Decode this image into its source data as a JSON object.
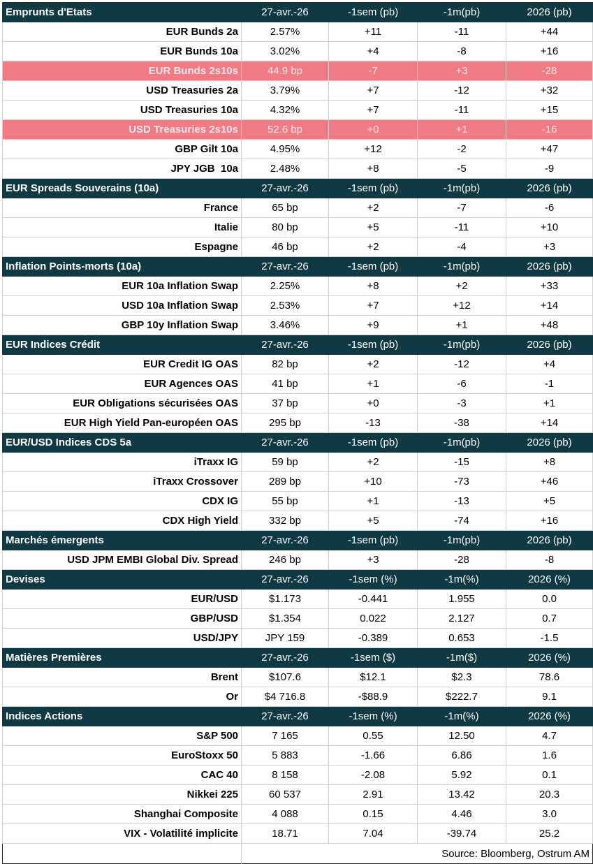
{
  "sections": [
    {
      "title": "Emprunts d'Etats",
      "columns": [
        "27-avr.-26",
        "-1sem (pb)",
        "-1m(pb)",
        "2026 (pb)"
      ],
      "rows": [
        {
          "label": "EUR Bunds 2a",
          "values": [
            "2.57%",
            "+11",
            "-11",
            "+44"
          ]
        },
        {
          "label": "EUR Bunds 10a",
          "values": [
            "3.02%",
            "+4",
            "-8",
            "+16"
          ]
        },
        {
          "label": "EUR Bunds 2s10s",
          "values": [
            "44.9 bp",
            "-7",
            "+3",
            "-28"
          ],
          "highlight": true
        },
        {
          "label": "USD Treasuries 2a",
          "values": [
            "3.79%",
            "+7",
            "-12",
            "+32"
          ]
        },
        {
          "label": "USD Treasuries 10a",
          "values": [
            "4.32%",
            "+7",
            "-11",
            "+15"
          ]
        },
        {
          "label": "USD Treasuries 2s10s",
          "values": [
            "52.6 bp",
            "+0",
            "+1",
            "-16"
          ],
          "highlight": true
        },
        {
          "label": "GBP Gilt 10a",
          "values": [
            "4.95%",
            "+12",
            "-2",
            "+47"
          ]
        },
        {
          "label": "JPY JGB  10a",
          "values": [
            "2.48%",
            "+8",
            "-5",
            "-9"
          ]
        }
      ]
    },
    {
      "title": "EUR Spreads Souverains (10a)",
      "columns": [
        "27-avr.-26",
        "-1sem (pb)",
        "-1m(pb)",
        "2026 (pb)"
      ],
      "rows": [
        {
          "label": "France",
          "values": [
            "65 bp",
            "+2",
            "-7",
            "-6"
          ]
        },
        {
          "label": "Italie",
          "values": [
            "80 bp",
            "+5",
            "-11",
            "+10"
          ]
        },
        {
          "label": "Espagne",
          "values": [
            "46 bp",
            "+2",
            "-4",
            "+3"
          ]
        }
      ]
    },
    {
      "title": "Inflation Points-morts (10a)",
      "columns": [
        "27-avr.-26",
        "-1sem (pb)",
        "-1m(pb)",
        "2026 (pb)"
      ],
      "rows": [
        {
          "label": "EUR 10a Inflation Swap",
          "values": [
            "2.25%",
            "+8",
            "+2",
            "+33"
          ]
        },
        {
          "label": "USD 10a Inflation Swap",
          "values": [
            "2.53%",
            "+7",
            "+12",
            "+14"
          ]
        },
        {
          "label": "GBP 10y Inflation Swap",
          "values": [
            "3.46%",
            "+9",
            "+1",
            "+48"
          ]
        }
      ]
    },
    {
      "title": "EUR Indices Crédit",
      "columns": [
        "27-avr.-26",
        "-1sem (pb)",
        "-1m(pb)",
        "2026 (pb)"
      ],
      "rows": [
        {
          "label": "EUR Credit IG OAS",
          "values": [
            "82 bp",
            "+2",
            "-12",
            "+4"
          ]
        },
        {
          "label": "EUR Agences OAS",
          "values": [
            "41 bp",
            "+1",
            "-6",
            "-1"
          ]
        },
        {
          "label": "EUR Obligations sécurisées OAS",
          "values": [
            "37 bp",
            "+0",
            "-3",
            "+1"
          ]
        },
        {
          "label": "EUR High Yield Pan-européen OAS",
          "values": [
            "295 bp",
            "-13",
            "-38",
            "+14"
          ]
        }
      ]
    },
    {
      "title": "EUR/USD Indices CDS 5a",
      "columns": [
        "27-avr.-26",
        "-1sem (pb)",
        "-1m(pb)",
        "2026 (pb)"
      ],
      "rows": [
        {
          "label": "iTraxx IG",
          "values": [
            "59 bp",
            "+2",
            "-15",
            "+8"
          ]
        },
        {
          "label": "iTraxx Crossover",
          "values": [
            "289 bp",
            "+10",
            "-73",
            "+46"
          ]
        },
        {
          "label": "CDX IG",
          "values": [
            "55 bp",
            "+1",
            "-13",
            "+5"
          ]
        },
        {
          "label": "CDX High Yield",
          "values": [
            "332 bp",
            "+5",
            "-74",
            "+16"
          ]
        }
      ]
    },
    {
      "title": "Marchés émergents",
      "columns": [
        "27-avr.-26",
        "-1sem (pb)",
        "-1m(pb)",
        "2026 (pb)"
      ],
      "rows": [
        {
          "label": "USD JPM EMBI Global Div. Spread",
          "values": [
            "246 bp",
            "+3",
            "-28",
            "-8"
          ]
        }
      ]
    },
    {
      "title": "Devises",
      "columns": [
        "27-avr.-26",
        "-1sem (%)",
        "-1m(%)",
        "2026 (%)"
      ],
      "rows": [
        {
          "label": "EUR/USD",
          "values": [
            "$1.173",
            "-0.441",
            "1.955",
            "0.0"
          ]
        },
        {
          "label": "GBP/USD",
          "values": [
            "$1.354",
            "0.022",
            "2.127",
            "0.7"
          ]
        },
        {
          "label": "USD/JPY",
          "values": [
            "JPY 159",
            "-0.389",
            "0.653",
            "-1.5"
          ]
        }
      ]
    },
    {
      "title": "Matières Premières",
      "columns": [
        "27-avr.-26",
        "-1sem ($)",
        "-1m($)",
        "2026 (%)"
      ],
      "rows": [
        {
          "label": "Brent",
          "values": [
            "$107.6",
            "$12.1",
            "$2.3",
            "78.6"
          ]
        },
        {
          "label": "Or",
          "values": [
            "$4 716.8",
            "-$88.9",
            "$222.7",
            "9.1"
          ]
        }
      ]
    },
    {
      "title": "Indices Actions",
      "columns": [
        "27-avr.-26",
        "-1sem (%)",
        "-1m(%)",
        "2026 (%)"
      ],
      "rows": [
        {
          "label": "S&P 500",
          "values": [
            "7 165",
            "0.55",
            "12.50",
            "4.7"
          ]
        },
        {
          "label": "EuroStoxx 50",
          "values": [
            "5 883",
            "-1.66",
            "6.86",
            "1.6"
          ]
        },
        {
          "label": "CAC 40",
          "values": [
            "8 158",
            "-2.08",
            "5.92",
            "0.1"
          ]
        },
        {
          "label": "Nikkei 225",
          "values": [
            "60 537",
            "2.91",
            "13.42",
            "20.3"
          ]
        },
        {
          "label": "Shanghai Composite",
          "values": [
            "4 088",
            "0.15",
            "4.46",
            "3.0"
          ]
        },
        {
          "label": "VIX - Volatilité implicite",
          "values": [
            "18.71",
            "7.04",
            "-39.74",
            "25.2"
          ]
        }
      ]
    }
  ],
  "source": "Source: Bloomberg, Ostrum AM"
}
